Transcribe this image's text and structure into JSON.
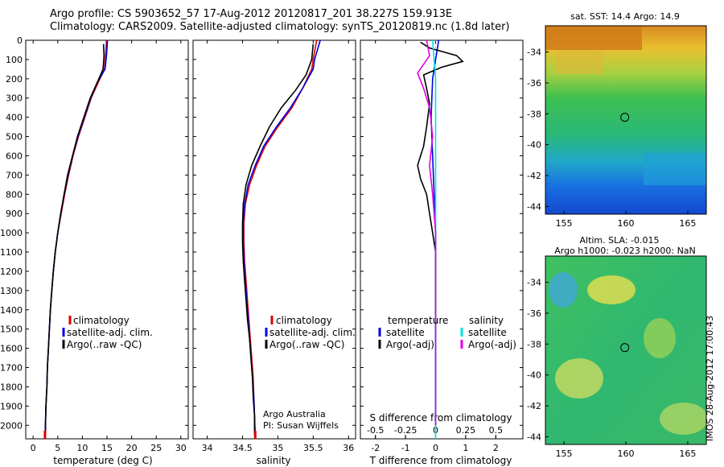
{
  "header": {
    "line1": "Argo profile: CS 5903652_57 17-Aug-2012 20120817_201 38.227S 159.913E",
    "line2": "Climatology: CARS2009. Satellite-adjusted climatology: synTS_20120819.nc (1.8d later)"
  },
  "colors": {
    "climatology": "#e00000",
    "satellite": "#0000e0",
    "argo": "#000000",
    "salinity_satellite": "#00e0e0",
    "salinity_argo": "#e000e0"
  },
  "chart_data": [
    {
      "type": "line",
      "xlabel": "temperature (deg C)",
      "xlim": [
        -1.5,
        31.5
      ],
      "xticks": [
        0,
        5,
        10,
        15,
        20,
        25,
        30
      ],
      "ylim": [
        2070,
        0
      ],
      "yticks": [
        0,
        100,
        200,
        300,
        400,
        500,
        600,
        700,
        800,
        900,
        1000,
        1100,
        1200,
        1300,
        1400,
        1500,
        1600,
        1700,
        1800,
        1900,
        2000
      ],
      "legend": [
        "climatology",
        "satellite-adj. clim.",
        "Argo(..raw -QC)"
      ],
      "series": [
        {
          "name": "climatology",
          "color": "#e00000",
          "points": [
            [
              14.9,
              0
            ],
            [
              14.7,
              80
            ],
            [
              14.5,
              150
            ],
            [
              13.2,
              220
            ],
            [
              11.8,
              300
            ],
            [
              10.5,
              400
            ],
            [
              9.2,
              500
            ],
            [
              8.1,
              600
            ],
            [
              7.2,
              700
            ],
            [
              6.4,
              800
            ],
            [
              5.7,
              900
            ],
            [
              5.0,
              1000
            ],
            [
              4.5,
              1100
            ],
            [
              4.1,
              1200
            ],
            [
              3.8,
              1300
            ],
            [
              3.5,
              1400
            ],
            [
              3.3,
              1500
            ],
            [
              3.1,
              1600
            ],
            [
              2.9,
              1700
            ],
            [
              2.8,
              1800
            ],
            [
              2.6,
              1900
            ],
            [
              2.5,
              2000
            ],
            [
              2.4,
              2070
            ]
          ]
        },
        {
          "name": "satellite-adj. clim.",
          "color": "#0000e0",
          "points": [
            [
              15.1,
              0
            ],
            [
              14.9,
              80
            ],
            [
              14.6,
              150
            ],
            [
              13.0,
              220
            ],
            [
              11.7,
              300
            ],
            [
              10.4,
              400
            ],
            [
              9.1,
              500
            ],
            [
              8.0,
              600
            ],
            [
              7.1,
              700
            ],
            [
              6.3,
              800
            ],
            [
              5.6,
              900
            ],
            [
              5.0,
              1000
            ],
            [
              4.5,
              1100
            ],
            [
              4.1,
              1200
            ],
            [
              3.8,
              1300
            ],
            [
              3.5,
              1400
            ],
            [
              3.3,
              1500
            ],
            [
              3.1,
              1600
            ],
            [
              2.9,
              1700
            ],
            [
              2.8,
              1800
            ],
            [
              2.6,
              1900
            ],
            [
              2.5,
              2000
            ],
            [
              2.4,
              2070
            ]
          ]
        },
        {
          "name": "Argo(..raw -QC)",
          "color": "#000000",
          "points": [
            [
              14.3,
              20
            ],
            [
              14.4,
              80
            ],
            [
              14.2,
              150
            ],
            [
              13.0,
              220
            ],
            [
              11.6,
              300
            ],
            [
              10.3,
              400
            ],
            [
              9.0,
              500
            ],
            [
              8.0,
              600
            ],
            [
              7.0,
              700
            ],
            [
              6.3,
              800
            ],
            [
              5.6,
              900
            ],
            [
              5.0,
              1000
            ],
            [
              4.5,
              1100
            ],
            [
              4.1,
              1200
            ],
            [
              3.8,
              1300
            ],
            [
              3.5,
              1400
            ],
            [
              3.3,
              1500
            ],
            [
              3.1,
              1600
            ],
            [
              2.9,
              1700
            ],
            [
              2.8,
              1800
            ],
            [
              2.6,
              1900
            ],
            [
              2.5,
              2000
            ],
            [
              2.5,
              2050
            ]
          ]
        }
      ]
    },
    {
      "type": "line",
      "xlabel": "salinity",
      "xlim": [
        33.8,
        36.1
      ],
      "xticks": [
        34,
        34.5,
        35,
        35.5,
        36
      ],
      "ylim": [
        2070,
        0
      ],
      "legend": [
        "climatology",
        "satellite-adj. clim.",
        "Argo(..raw -QC)"
      ],
      "annotation": [
        "Argo Australia",
        "PI: Susan Wijffels"
      ],
      "series": [
        {
          "name": "climatology",
          "color": "#e00000",
          "points": [
            [
              35.55,
              0
            ],
            [
              35.5,
              100
            ],
            [
              35.48,
              150
            ],
            [
              35.35,
              250
            ],
            [
              35.2,
              350
            ],
            [
              35.0,
              450
            ],
            [
              34.82,
              550
            ],
            [
              34.7,
              650
            ],
            [
              34.6,
              750
            ],
            [
              34.54,
              850
            ],
            [
              34.52,
              950
            ],
            [
              34.52,
              1050
            ],
            [
              34.53,
              1150
            ],
            [
              34.55,
              1250
            ],
            [
              34.57,
              1350
            ],
            [
              34.59,
              1450
            ],
            [
              34.61,
              1550
            ],
            [
              34.63,
              1650
            ],
            [
              34.65,
              1750
            ],
            [
              34.66,
              1850
            ],
            [
              34.67,
              1950
            ],
            [
              34.68,
              2070
            ]
          ]
        },
        {
          "name": "satellite-adj. clim.",
          "color": "#0000e0",
          "points": [
            [
              35.6,
              0
            ],
            [
              35.52,
              100
            ],
            [
              35.5,
              150
            ],
            [
              35.35,
              250
            ],
            [
              35.18,
              350
            ],
            [
              34.98,
              450
            ],
            [
              34.8,
              550
            ],
            [
              34.68,
              650
            ],
            [
              34.58,
              750
            ],
            [
              34.53,
              850
            ],
            [
              34.51,
              950
            ],
            [
              34.51,
              1050
            ],
            [
              34.52,
              1150
            ],
            [
              34.54,
              1250
            ],
            [
              34.56,
              1350
            ],
            [
              34.58,
              1450
            ],
            [
              34.6,
              1550
            ],
            [
              34.62,
              1650
            ],
            [
              34.64,
              1750
            ],
            [
              34.66,
              1850
            ],
            [
              34.67,
              1950
            ],
            [
              34.68,
              2070
            ]
          ]
        },
        {
          "name": "Argo(..raw -QC)",
          "color": "#000000",
          "points": [
            [
              35.5,
              20
            ],
            [
              35.48,
              100
            ],
            [
              35.4,
              180
            ],
            [
              35.25,
              260
            ],
            [
              35.05,
              350
            ],
            [
              34.88,
              450
            ],
            [
              34.75,
              550
            ],
            [
              34.63,
              650
            ],
            [
              34.55,
              750
            ],
            [
              34.51,
              850
            ],
            [
              34.5,
              950
            ],
            [
              34.5,
              1050
            ],
            [
              34.51,
              1150
            ],
            [
              34.53,
              1250
            ],
            [
              34.55,
              1350
            ],
            [
              34.57,
              1450
            ],
            [
              34.6,
              1550
            ],
            [
              34.62,
              1650
            ],
            [
              34.64,
              1750
            ],
            [
              34.65,
              1850
            ],
            [
              34.67,
              1950
            ],
            [
              34.67,
              2050
            ]
          ]
        }
      ]
    },
    {
      "type": "line",
      "xlabel": "T difference from climatology",
      "xlabel_top": "S difference from climatology",
      "xlim": [
        -2.5,
        2.9
      ],
      "xticks": [
        -2,
        -1,
        0,
        1,
        2
      ],
      "sticks": [
        "-0.5",
        "-0.25",
        "0",
        "0.25",
        "0.5"
      ],
      "s_scale": 4,
      "ylim": [
        2070,
        0
      ],
      "legend_temperature": {
        "heading": "temperature",
        "items": [
          "satellite",
          "Argo(-adj)"
        ]
      },
      "legend_salinity": {
        "heading": "salinity",
        "items": [
          "satellite",
          "Argo(-adj)"
        ]
      },
      "series": [
        {
          "name": "satellite",
          "color": "#0000e0",
          "points": [
            [
              0.1,
              0
            ],
            [
              0.0,
              100
            ],
            [
              -0.1,
              200
            ],
            [
              -0.15,
              400
            ],
            [
              -0.1,
              600
            ],
            [
              -0.05,
              800
            ],
            [
              0.0,
              1000
            ],
            [
              0.0,
              1400
            ],
            [
              0.0,
              2000
            ]
          ]
        },
        {
          "name": "Argo(-adj)",
          "color": "#000000",
          "points": [
            [
              -0.5,
              10
            ],
            [
              -0.2,
              40
            ],
            [
              0.7,
              80
            ],
            [
              0.9,
              110
            ],
            [
              0.2,
              140
            ],
            [
              -0.4,
              180
            ],
            [
              -0.3,
              250
            ],
            [
              -0.2,
              330
            ],
            [
              -0.3,
              450
            ],
            [
              -0.4,
              550
            ],
            [
              -0.6,
              650
            ],
            [
              -0.5,
              720
            ],
            [
              -0.3,
              800
            ],
            [
              -0.2,
              900
            ],
            [
              -0.1,
              1000
            ],
            [
              0.0,
              1100
            ],
            [
              0.0,
              1300
            ],
            [
              0.0,
              1500
            ]
          ]
        },
        {
          "name": "satellite",
          "color": "#00e0e0",
          "points": [
            [
              -0.1,
              0
            ],
            [
              -0.05,
              100
            ],
            [
              0.0,
              200
            ],
            [
              0.0,
              400
            ],
            [
              0.0,
              800
            ],
            [
              0.0,
              1200
            ],
            [
              0.0,
              2070
            ]
          ]
        },
        {
          "name": "Argo(-adj)",
          "color": "#e000e0",
          "points": [
            [
              -0.3,
              0
            ],
            [
              -0.2,
              80
            ],
            [
              -0.6,
              170
            ],
            [
              -0.4,
              250
            ],
            [
              -0.2,
              350
            ],
            [
              -0.1,
              500
            ],
            [
              -0.2,
              650
            ],
            [
              -0.1,
              800
            ],
            [
              0.0,
              1000
            ],
            [
              0.0,
              1200
            ],
            [
              0.0,
              1500
            ],
            [
              0.0,
              2000
            ]
          ]
        }
      ]
    },
    {
      "type": "heatmap",
      "title": "sat. SST: 14.4  Argo: 14.9",
      "xticks": [
        155,
        160,
        165
      ],
      "yticks": [
        -34,
        -36,
        -38,
        -40,
        -42,
        -44
      ],
      "xlim": [
        153.5,
        166.5
      ],
      "ylim": [
        -44.5,
        -32.3
      ],
      "marker": {
        "lon": 159.913,
        "lat": -38.227
      }
    },
    {
      "type": "heatmap",
      "title_line1": "Altim. SLA: -0.015",
      "title_line2": "Argo h1000: -0.023 h2000: NaN",
      "xticks": [
        155,
        160,
        165
      ],
      "yticks": [
        -34,
        -36,
        -38,
        -40,
        -42,
        -44
      ],
      "xlim": [
        153.5,
        166.5
      ],
      "ylim": [
        -44.5,
        -32.3
      ],
      "marker": {
        "lon": 159.913,
        "lat": -38.227
      }
    }
  ],
  "stamp": "IMOS 28-Aug-2012 17:00:43"
}
